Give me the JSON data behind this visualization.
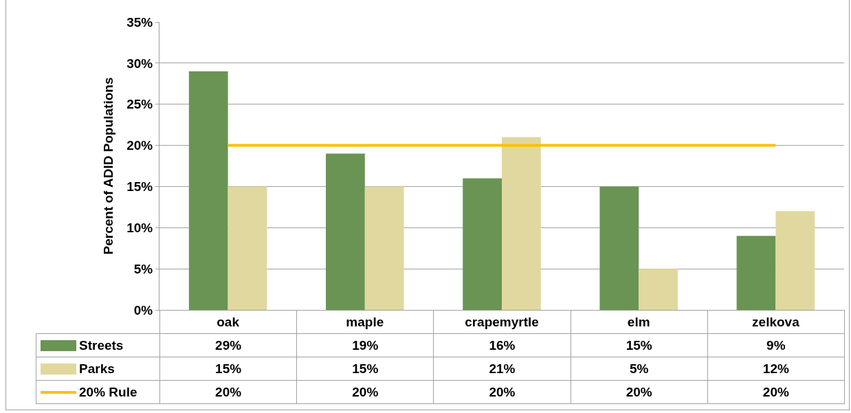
{
  "chart_data": {
    "type": "bar",
    "ylabel": "Percent of ADID Populations",
    "categories": [
      "oak",
      "maple",
      "crapemyrtle",
      "elm",
      "zelkova"
    ],
    "series": [
      {
        "name": "Streets",
        "color": "#6a9454",
        "values": [
          29,
          19,
          16,
          15,
          9
        ],
        "value_labels": [
          "29%",
          "19%",
          "16%",
          "15%",
          "9%"
        ]
      },
      {
        "name": "Parks",
        "color": "#e0d89e",
        "values": [
          15,
          15,
          21,
          5,
          12
        ],
        "value_labels": [
          "15%",
          "15%",
          "21%",
          "5%",
          "12%"
        ]
      },
      {
        "name": "20% Rule",
        "type": "line",
        "color": "#ffc000",
        "values": [
          20,
          20,
          20,
          20,
          20
        ],
        "value_labels": [
          "20%",
          "20%",
          "20%",
          "20%",
          "20%"
        ]
      }
    ],
    "ylim": [
      0,
      35
    ],
    "yticks": [
      {
        "value": 0,
        "label": "0%"
      },
      {
        "value": 5,
        "label": "5%"
      },
      {
        "value": 10,
        "label": "10%"
      },
      {
        "value": 15,
        "label": "15%"
      },
      {
        "value": 20,
        "label": "20%"
      },
      {
        "value": 25,
        "label": "25%"
      },
      {
        "value": 30,
        "label": "30%"
      },
      {
        "value": 35,
        "label": "35%"
      }
    ],
    "grid": "y",
    "legend": "bottom left"
  }
}
